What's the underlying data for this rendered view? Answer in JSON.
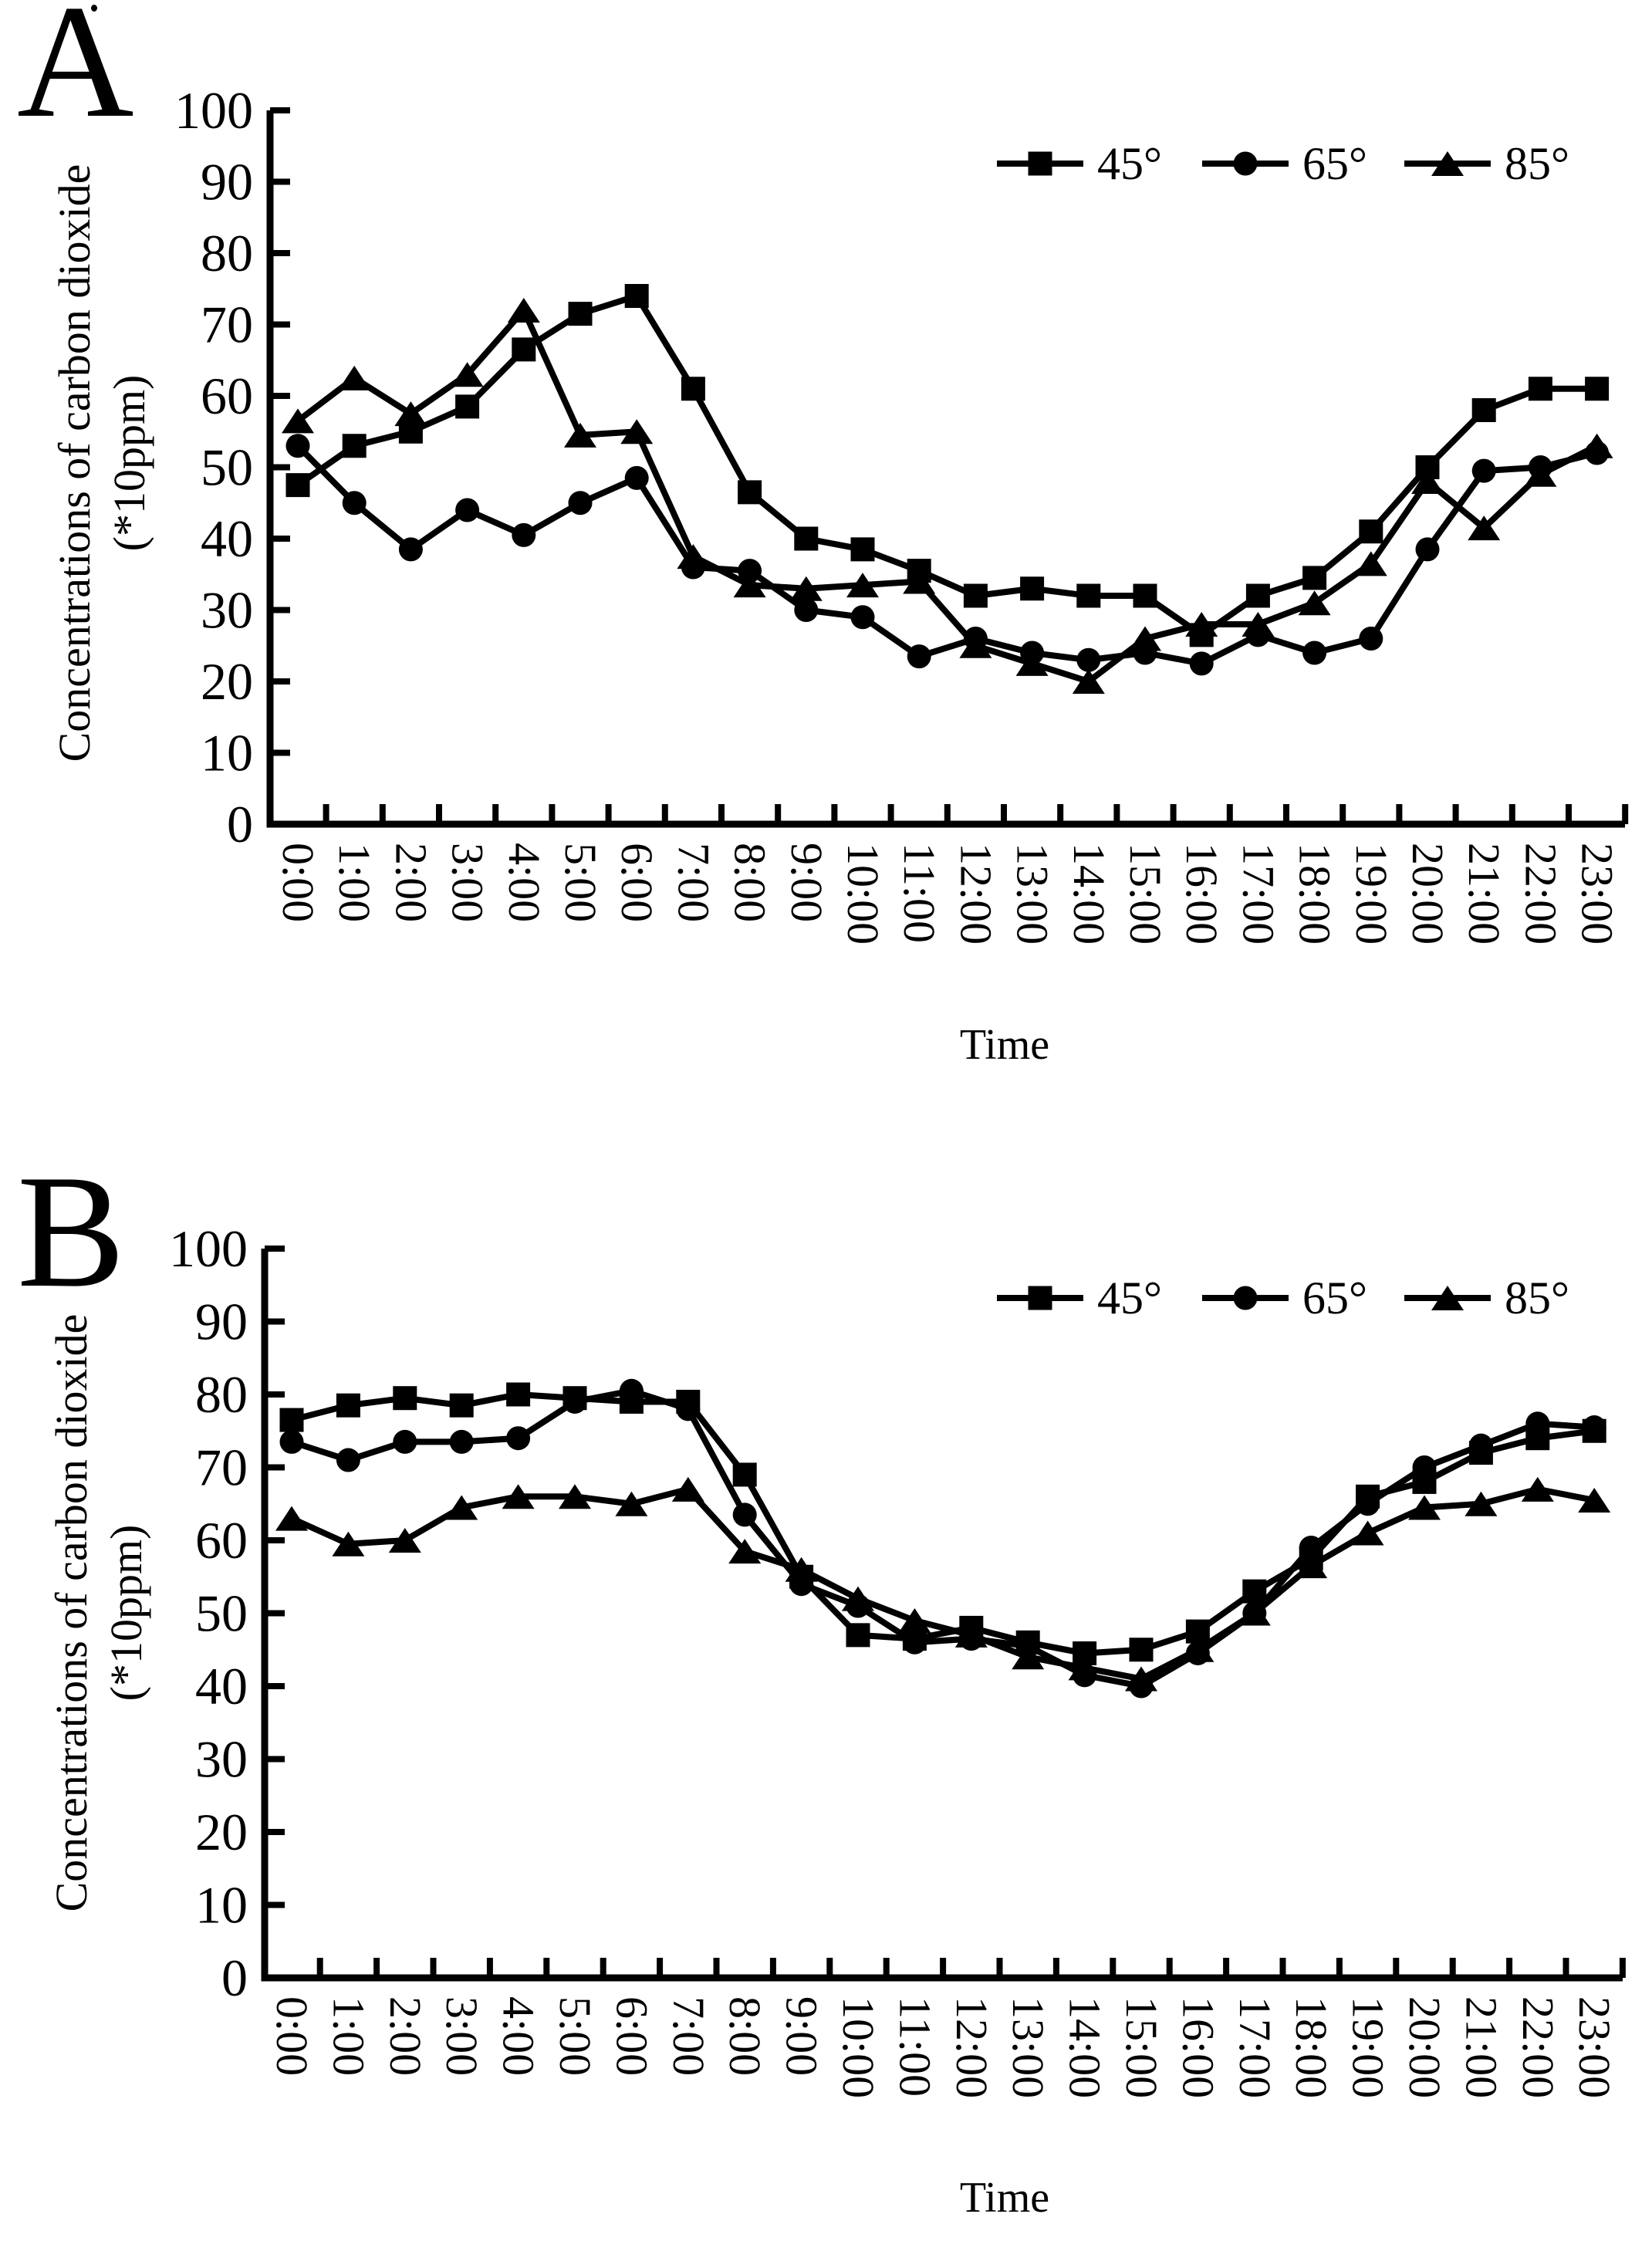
{
  "figure": {
    "background": "#ffffff",
    "ink_color": "#000000",
    "panels_count": 2
  },
  "chart_data": [
    {
      "type": "line",
      "panel_label": "A",
      "xlabel": "Time",
      "ylabel_line1": "Concentrations of carbon dioxide",
      "ylabel_line2": "(*10ppm)",
      "ylim": [
        0,
        100
      ],
      "ytick_step": 10,
      "ytick_labels": [
        "0",
        "10",
        "20",
        "30",
        "40",
        "50",
        "60",
        "70",
        "80",
        "90",
        "100"
      ],
      "grid": false,
      "legend_position": "top-right-inside",
      "categories": [
        "0:00",
        "1:00",
        "2:00",
        "3:00",
        "4:00",
        "5:00",
        "6:00",
        "7:00",
        "8:00",
        "9:00",
        "10:00",
        "11:00",
        "12:00",
        "13:00",
        "14:00",
        "15:00",
        "16:00",
        "17:00",
        "18:00",
        "19:00",
        "20:00",
        "21:00",
        "22:00",
        "23:00"
      ],
      "series": [
        {
          "name": "45°",
          "marker": "square",
          "values": [
            47.5,
            53,
            55,
            58.5,
            66.5,
            71.5,
            74,
            61,
            46.5,
            40,
            38.5,
            35.5,
            32,
            33,
            32,
            32,
            26.5,
            32,
            34.5,
            41,
            50,
            58,
            61,
            61
          ]
        },
        {
          "name": "65°",
          "marker": "circle",
          "values": [
            53,
            45,
            38.5,
            44,
            40.5,
            45,
            48.5,
            36,
            35.5,
            30,
            29,
            23.5,
            26,
            24,
            23,
            24,
            22.5,
            26.5,
            24,
            26,
            38.5,
            49.5,
            50,
            52
          ]
        },
        {
          "name": "85°",
          "marker": "triangle",
          "values": [
            56.5,
            62.5,
            57.5,
            63,
            72,
            54.5,
            55,
            37.5,
            33.5,
            33,
            33.5,
            34,
            25,
            22.5,
            20,
            26,
            28,
            28,
            31,
            36.5,
            48,
            41.5,
            49,
            53
          ]
        }
      ]
    },
    {
      "type": "line",
      "panel_label": "B",
      "xlabel": "Time",
      "ylabel_line1": "Concentrations of carbon dioxide",
      "ylabel_line2": "(*10ppm)",
      "ylim": [
        0,
        100
      ],
      "ytick_step": 10,
      "ytick_labels": [
        "0",
        "10",
        "20",
        "30",
        "40",
        "50",
        "60",
        "70",
        "80",
        "90",
        "100"
      ],
      "grid": false,
      "legend_position": "top-right-inside",
      "categories": [
        "0:00",
        "1:00",
        "2:00",
        "3:00",
        "4:00",
        "5:00",
        "6:00",
        "7:00",
        "8:00",
        "9:00",
        "10:00",
        "11:00",
        "12:00",
        "13:00",
        "14:00",
        "15:00",
        "16:00",
        "17:00",
        "18:00",
        "19:00",
        "20:00",
        "21:00",
        "22:00",
        "23:00"
      ],
      "series": [
        {
          "name": "45°",
          "marker": "square",
          "values": [
            76.5,
            78.5,
            79.5,
            78.5,
            80,
            79.5,
            79,
            79,
            69,
            55,
            47,
            46.5,
            48,
            46,
            44.5,
            45,
            47.5,
            53,
            57.5,
            66,
            68,
            72,
            74,
            75
          ]
        },
        {
          "name": "65°",
          "marker": "circle",
          "values": [
            73.5,
            71,
            73.5,
            73.5,
            74,
            79,
            80.5,
            78,
            63.5,
            54,
            51,
            46,
            46.5,
            45.5,
            41.5,
            40,
            44.5,
            50,
            59,
            65,
            70,
            73,
            76,
            75.5
          ]
        },
        {
          "name": "85°",
          "marker": "triangle",
          "values": [
            63,
            59.5,
            60,
            64.5,
            66,
            66,
            65,
            67,
            58.5,
            56,
            52,
            49,
            47,
            44,
            42.5,
            41,
            45,
            50,
            56.5,
            61,
            64.5,
            65,
            67,
            65.5
          ]
        }
      ]
    }
  ]
}
